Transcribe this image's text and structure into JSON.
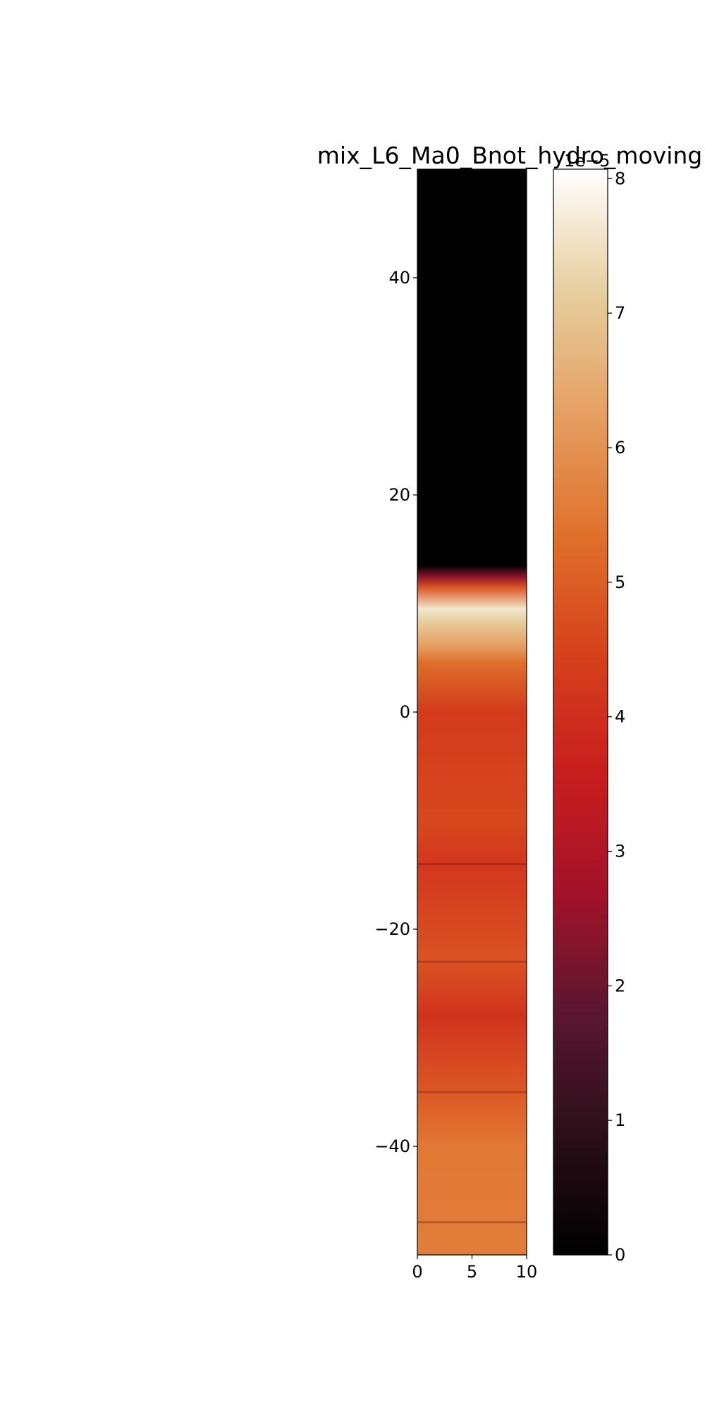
{
  "chart_data": [
    {
      "type": "heatmap",
      "title": "mix_L6_Ma0_Bnot_hydro_moving",
      "xlabel": "",
      "ylabel": "",
      "xlim": [
        0,
        10
      ],
      "ylim": [
        -50,
        50
      ],
      "x_ticks": [
        0,
        5,
        10
      ],
      "y_ticks": [
        -40,
        -20,
        0,
        20,
        40
      ],
      "x_tick_labels": [
        "0",
        "5",
        "10"
      ],
      "y_tick_labels": [
        "−40",
        "−20",
        "0",
        "20",
        "40"
      ],
      "grid": false,
      "colormap": "dark-red-orange-cream",
      "colorscale_stops": [
        "#000000",
        "#2a0f18",
        "#5a1630",
        "#a3122a",
        "#c81e1e",
        "#d6421c",
        "#e0722d",
        "#e6a064",
        "#e6cfa0",
        "#ffffff"
      ],
      "vertical_profile": [
        {
          "y": 50,
          "value": 0
        },
        {
          "y": 13.5,
          "value": 0
        },
        {
          "y": 12.5,
          "value": 2.4
        },
        {
          "y": 11.5,
          "value": 4.8
        },
        {
          "y": 9.5,
          "value": 7.6
        },
        {
          "y": 8,
          "value": 7.0
        },
        {
          "y": 6,
          "value": 6.2
        },
        {
          "y": 4.5,
          "value": 5.3
        },
        {
          "y": 0,
          "value": 4.3
        },
        {
          "y": -10,
          "value": 4.6
        },
        {
          "y": -14,
          "value": 4.2
        },
        {
          "y": -23,
          "value": 4.8
        },
        {
          "y": -28,
          "value": 4.1
        },
        {
          "y": -35,
          "value": 4.9
        },
        {
          "y": -40,
          "value": 5.5
        },
        {
          "y": -50,
          "value": 5.6
        }
      ]
    },
    {
      "type": "colorbar",
      "range": [
        0,
        8.07
      ],
      "ticks": [
        0,
        1,
        2,
        3,
        4,
        5,
        6,
        7,
        8
      ],
      "tick_labels": [
        "0",
        "1",
        "2",
        "3",
        "4",
        "5",
        "6",
        "7",
        "8"
      ],
      "offset_text": "1e−5"
    }
  ]
}
